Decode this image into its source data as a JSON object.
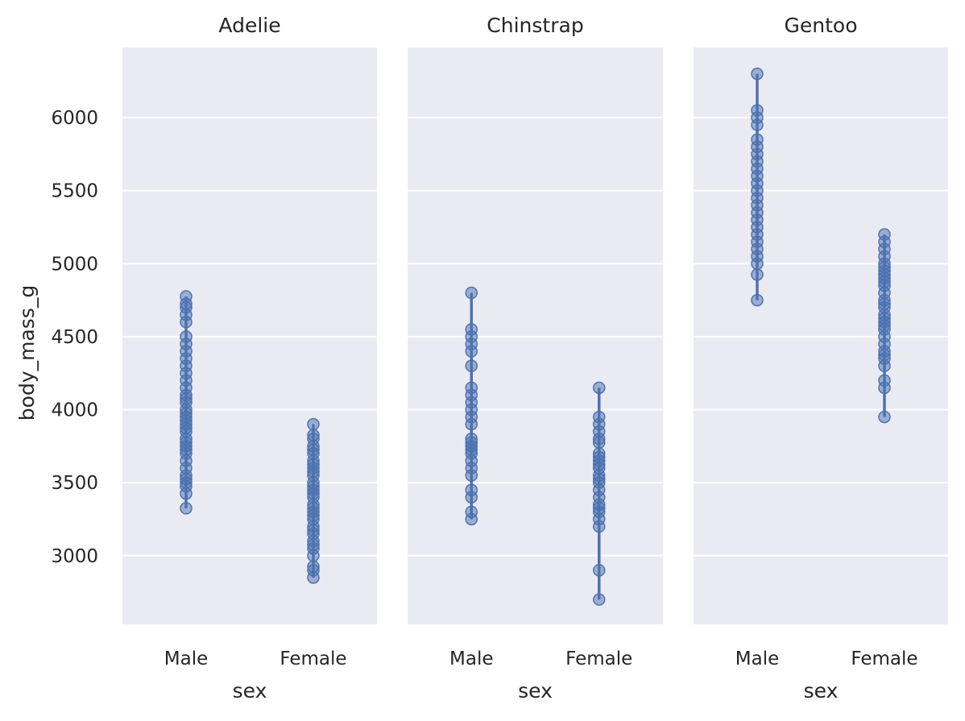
{
  "colors": {
    "panel_background": "#eaeaf2",
    "grid": "#ffffff",
    "marker": "#4c72b0",
    "marker_fill": "#4c72b080",
    "text": "#262626"
  },
  "chart_data": {
    "type": "scatter",
    "description_style": "strip of circles per category with min-max range line",
    "ylabel": "body_mass_g",
    "xlabel": "sex",
    "ylim": [
      2530,
      6480
    ],
    "yticks": [
      3000,
      3500,
      4000,
      4500,
      5000,
      5500,
      6000
    ],
    "ytick_labels": [
      "3000",
      "3500",
      "4000",
      "4500",
      "5000",
      "5500",
      "6000"
    ],
    "categories": [
      "Male",
      "Female"
    ],
    "grid": true,
    "facets": [
      {
        "title": "Adelie",
        "series": [
          {
            "category": "Male",
            "min": 3325,
            "max": 4775,
            "values": [
              3325,
              3425,
              3475,
              3500,
              3525,
              3550,
              3600,
              3650,
              3700,
              3725,
              3750,
              3775,
              3800,
              3850,
              3875,
              3900,
              3925,
              3950,
              3975,
              4000,
              4050,
              4075,
              4100,
              4150,
              4200,
              4250,
              4300,
              4350,
              4400,
              4450,
              4500,
              4600,
              4650,
              4700,
              4725,
              4775
            ]
          },
          {
            "category": "Female",
            "min": 2850,
            "max": 3900,
            "values": [
              2850,
              2900,
              2925,
              3000,
              3050,
              3075,
              3100,
              3150,
              3175,
              3200,
              3250,
              3275,
              3300,
              3325,
              3350,
              3400,
              3425,
              3450,
              3475,
              3500,
              3550,
              3575,
              3600,
              3625,
              3650,
              3700,
              3725,
              3750,
              3800,
              3825,
              3900
            ]
          }
        ]
      },
      {
        "title": "Chinstrap",
        "series": [
          {
            "category": "Male",
            "min": 3250,
            "max": 4800,
            "values": [
              3250,
              3300,
              3400,
              3450,
              3550,
              3600,
              3650,
              3700,
              3725,
              3750,
              3775,
              3800,
              3900,
              3950,
              4000,
              4050,
              4100,
              4150,
              4300,
              4400,
              4450,
              4500,
              4550,
              4800
            ]
          },
          {
            "category": "Female",
            "min": 2700,
            "max": 4150,
            "values": [
              2700,
              2900,
              3200,
              3250,
              3300,
              3325,
              3350,
              3400,
              3450,
              3500,
              3525,
              3550,
              3600,
              3625,
              3650,
              3675,
              3700,
              3775,
              3800,
              3850,
              3900,
              3950,
              4150
            ]
          }
        ]
      },
      {
        "title": "Gentoo",
        "series": [
          {
            "category": "Male",
            "min": 4750,
            "max": 6300,
            "values": [
              4750,
              4925,
              5000,
              5050,
              5100,
              5150,
              5200,
              5250,
              5300,
              5350,
              5400,
              5450,
              5500,
              5550,
              5600,
              5650,
              5700,
              5750,
              5800,
              5850,
              5950,
              6000,
              6050,
              6300
            ]
          },
          {
            "category": "Female",
            "min": 3950,
            "max": 5200,
            "values": [
              3950,
              4150,
              4200,
              4300,
              4350,
              4375,
              4400,
              4450,
              4500,
              4550,
              4575,
              4600,
              4625,
              4650,
              4700,
              4725,
              4750,
              4800,
              4850,
              4875,
              4900,
              4925,
              4950,
              4975,
              5000,
              5050,
              5100,
              5150,
              5200
            ]
          }
        ]
      }
    ]
  }
}
